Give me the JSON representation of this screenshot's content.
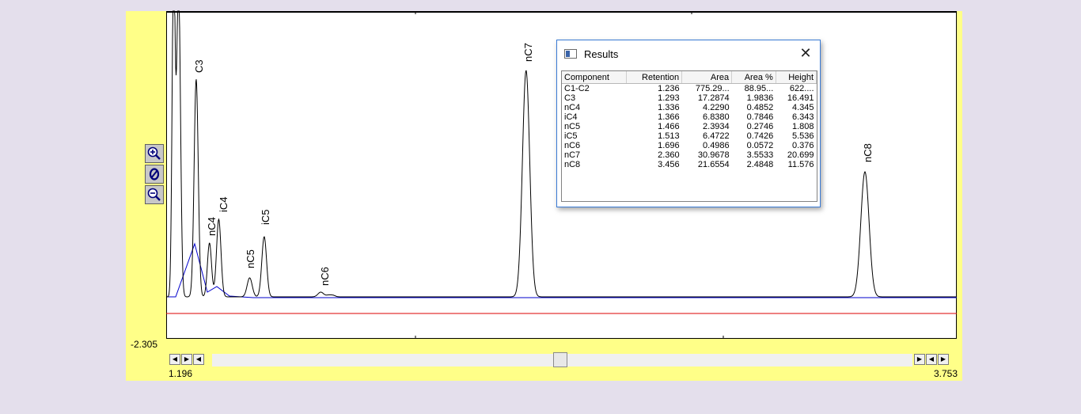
{
  "chart": {
    "y_min_label": "-2.305",
    "x_min_label": "1.196",
    "x_max_label": "3.753",
    "colors": {
      "signal": "#000000",
      "baseline": "#0000cc",
      "reference": "#dd0000",
      "panel": "#ffff88"
    }
  },
  "chart_data": {
    "type": "line",
    "x_range": [
      1.196,
      3.753
    ],
    "peak_labels": [
      "C3",
      "nC4",
      "iC4",
      "nC5",
      "iC5",
      "nC6",
      "nC7",
      "nC8"
    ]
  },
  "zoom_tools": {
    "zoom_in_icon": "zoom-in-icon",
    "zoom_reset_icon": "zoom-reset-icon",
    "zoom_out_icon": "zoom-out-icon"
  },
  "results": {
    "title": "Results",
    "close_glyph": "✕",
    "columns": [
      "Component",
      "Retention",
      "Area",
      "Area %",
      "Height"
    ],
    "rows": [
      [
        "C1-C2",
        "1.236",
        "775.29...",
        "88.95...",
        "622...."
      ],
      [
        "C3",
        "1.293",
        "17.2874",
        "1.9836",
        "16.491"
      ],
      [
        "nC4",
        "1.336",
        "4.2290",
        "0.4852",
        "4.345"
      ],
      [
        "iC4",
        "1.366",
        "6.8380",
        "0.7846",
        "6.343"
      ],
      [
        "nC5",
        "1.466",
        "2.3934",
        "0.2746",
        "1.808"
      ],
      [
        "iC5",
        "1.513",
        "6.4722",
        "0.7426",
        "5.536"
      ],
      [
        "nC6",
        "1.696",
        "0.4986",
        "0.0572",
        "0.376"
      ],
      [
        "nC7",
        "2.360",
        "30.9678",
        "3.5533",
        "20.699"
      ],
      [
        "nC8",
        "3.456",
        "21.6554",
        "2.4848",
        "11.576"
      ]
    ]
  },
  "scrollbar": {
    "thumb_position": 0.49
  }
}
